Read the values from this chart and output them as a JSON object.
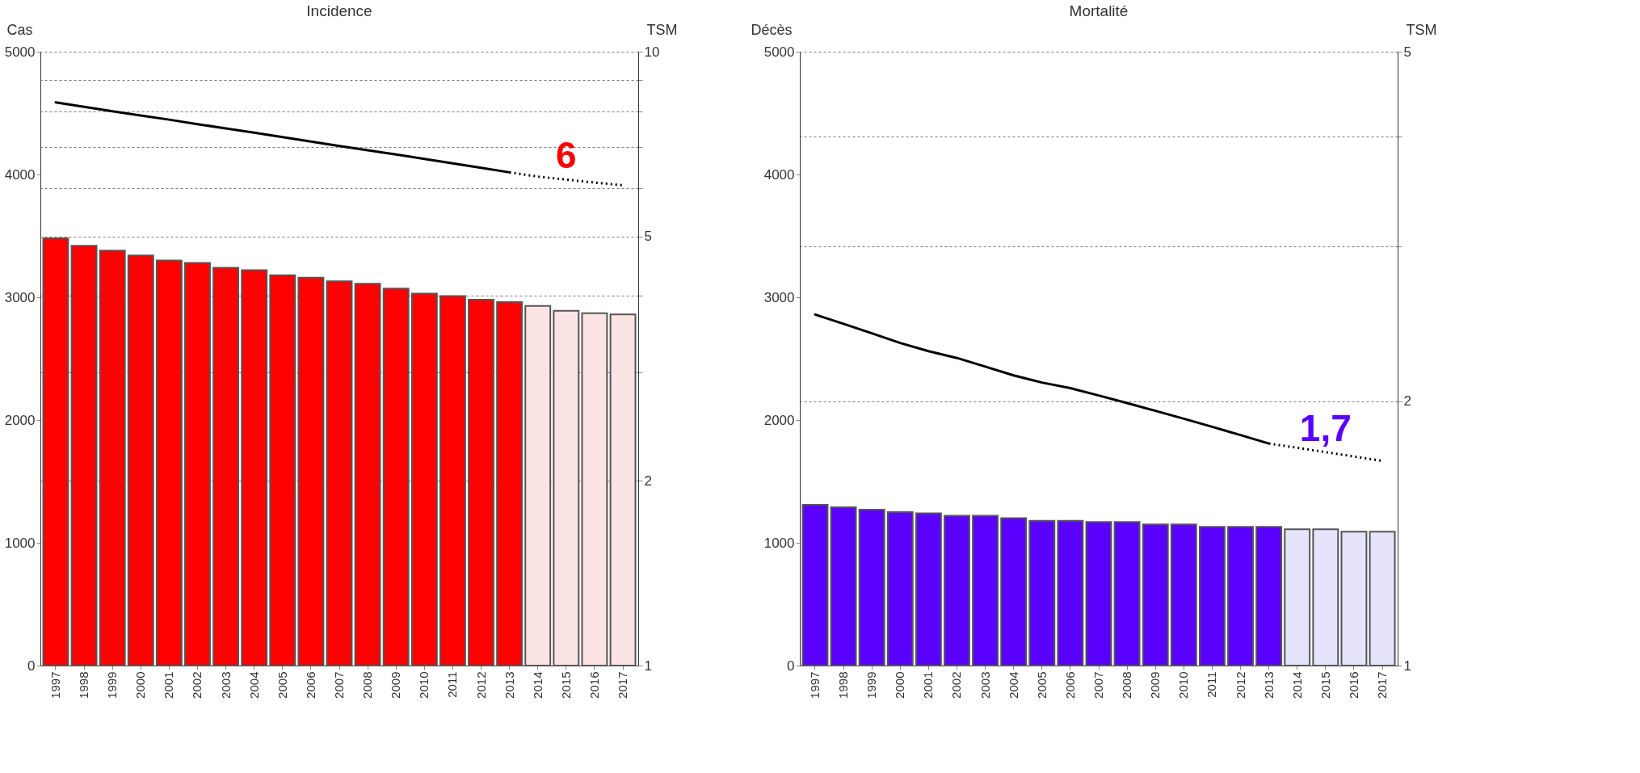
{
  "chart_data": [
    {
      "type": "bar",
      "title": "Incidence",
      "ylabel": "Cas",
      "y2label": "TSM",
      "categories": [
        "1997",
        "1998",
        "1999",
        "2000",
        "2001",
        "2002",
        "2003",
        "2004",
        "2005",
        "2006",
        "2007",
        "2008",
        "2009",
        "2010",
        "2011",
        "2012",
        "2013",
        "2014",
        "2015",
        "2016",
        "2017"
      ],
      "series": [
        {
          "values": [
            3480,
            3420,
            3380,
            3340,
            3300,
            3280,
            3240,
            3220,
            3180,
            3160,
            3130,
            3110,
            3070,
            3030,
            3010,
            2980,
            2960,
            2930,
            2890,
            2870,
            2860
          ],
          "colors": [
            "#ff0000",
            "#ff0000",
            "#ff0000",
            "#ff0000",
            "#ff0000",
            "#ff0000",
            "#ff0000",
            "#ff0000",
            "#ff0000",
            "#ff0000",
            "#ff0000",
            "#ff0000",
            "#ff0000",
            "#ff0000",
            "#ff0000",
            "#ff0000",
            "#ff0000",
            "#fde4e4",
            "#fde4e4",
            "#fde4e4",
            "#fde4e4"
          ]
        },
        {
          "type": "line",
          "axis": "y2",
          "color": "#000000",
          "line_style": "solid",
          "values": [
            8.27,
            8.13,
            8.0,
            7.87,
            7.75,
            7.62,
            7.5,
            7.38,
            7.26,
            7.14,
            7.02,
            6.91,
            6.8,
            6.69,
            6.58,
            6.47,
            6.36,
            null,
            null,
            null,
            null
          ]
        },
        {
          "type": "line",
          "axis": "y2",
          "color": "#000000",
          "line_style": "dotted",
          "values": [
            null,
            null,
            null,
            null,
            null,
            null,
            null,
            null,
            null,
            null,
            null,
            null,
            null,
            null,
            null,
            null,
            6.36,
            6.26,
            6.19,
            6.12,
            6.06
          ]
        }
      ],
      "ylim": [
        0,
        5000
      ],
      "yticks": [
        0,
        1000,
        2000,
        3000,
        4000,
        5000
      ],
      "y2lim": [
        1,
        10
      ],
      "y2ticks": [
        1,
        2,
        {
          "value": 3,
          "label": null
        },
        {
          "value": 4,
          "label": null
        },
        5,
        {
          "value": 6,
          "label": null
        },
        {
          "value": 7,
          "label": null
        },
        {
          "value": 8,
          "label": null
        },
        {
          "value": 9,
          "label": null
        },
        10
      ],
      "log": "y2",
      "grid": "y2",
      "annotations": [
        "6"
      ]
    },
    {
      "type": "bar",
      "title": "Mortalité",
      "ylabel": "Décès",
      "y2label": "TSM",
      "categories": [
        "1997",
        "1998",
        "1999",
        "2000",
        "2001",
        "2002",
        "2003",
        "2004",
        "2005",
        "2006",
        "2007",
        "2008",
        "2009",
        "2010",
        "2011",
        "2012",
        "2013",
        "2014",
        "2015",
        "2016",
        "2017"
      ],
      "series": [
        {
          "values": [
            1310,
            1290,
            1270,
            1250,
            1240,
            1220,
            1220,
            1200,
            1180,
            1180,
            1170,
            1170,
            1150,
            1150,
            1130,
            1130,
            1130,
            1110,
            1110,
            1090,
            1090
          ],
          "colors": [
            "#5a00ff",
            "#5a00ff",
            "#5a00ff",
            "#5a00ff",
            "#5a00ff",
            "#5a00ff",
            "#5a00ff",
            "#5a00ff",
            "#5a00ff",
            "#5a00ff",
            "#5a00ff",
            "#5a00ff",
            "#5a00ff",
            "#5a00ff",
            "#5a00ff",
            "#5a00ff",
            "#5a00ff",
            "#e6e4fd",
            "#e6e4fd",
            "#e6e4fd",
            "#e6e4fd"
          ]
        },
        {
          "type": "line",
          "axis": "y2",
          "color": "#000000",
          "line_style": "solid",
          "values": [
            2.51,
            2.45,
            2.39,
            2.33,
            2.28,
            2.24,
            2.19,
            2.14,
            2.1,
            2.07,
            2.03,
            1.99,
            1.95,
            1.91,
            1.87,
            1.83,
            1.79,
            null,
            null,
            null,
            null
          ]
        },
        {
          "type": "line",
          "axis": "y2",
          "color": "#000000",
          "line_style": "dotted",
          "values": [
            null,
            null,
            null,
            null,
            null,
            null,
            null,
            null,
            null,
            null,
            null,
            null,
            null,
            null,
            null,
            null,
            1.79,
            1.77,
            1.75,
            1.73,
            1.71
          ]
        }
      ],
      "ylim": [
        0,
        5000
      ],
      "yticks": [
        0,
        1000,
        2000,
        3000,
        4000,
        5000
      ],
      "y2lim": [
        1,
        5
      ],
      "y2ticks": [
        1,
        2,
        {
          "value": 3,
          "label": null
        },
        {
          "value": 4,
          "label": null
        },
        5
      ],
      "log": "y2",
      "grid": "y2",
      "annotations": [
        "1,7"
      ]
    }
  ]
}
